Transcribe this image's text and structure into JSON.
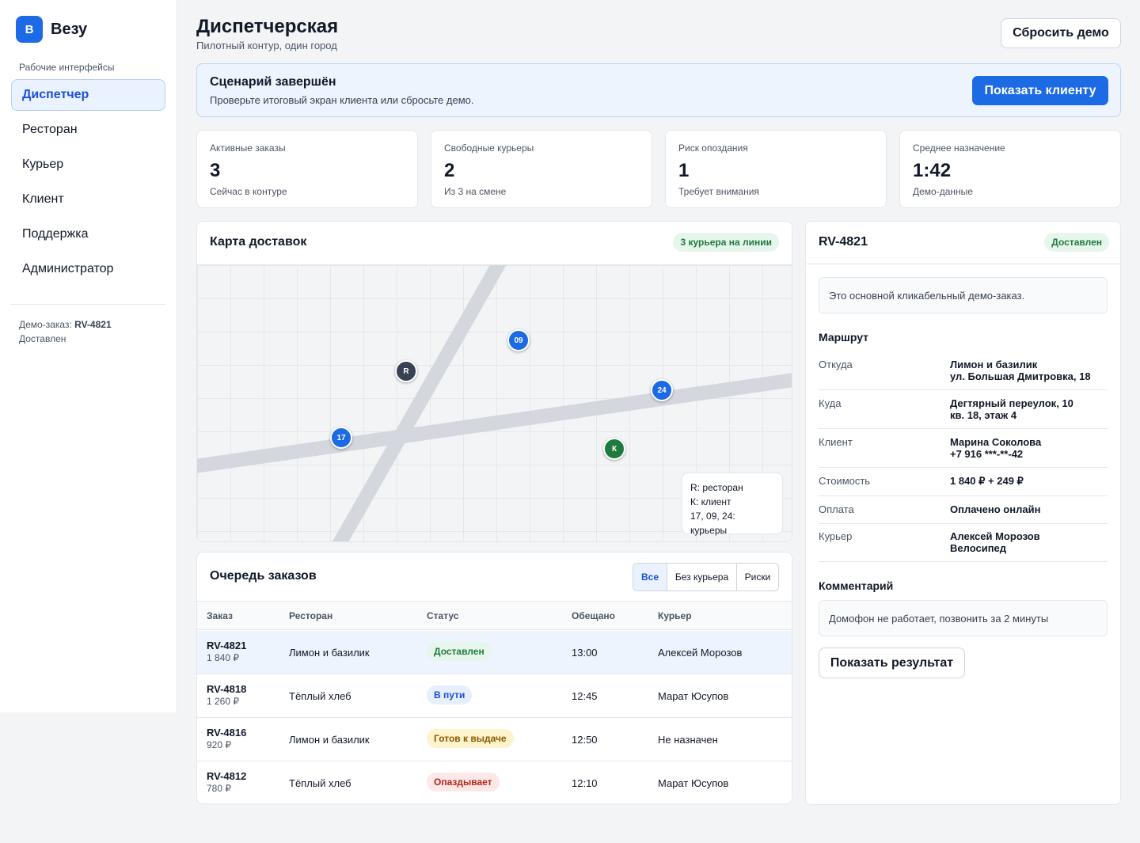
{
  "app": {
    "logo_letter": "В",
    "name": "Везу"
  },
  "sidebar": {
    "section_label": "Рабочие интерфейсы",
    "items": [
      {
        "label": "Диспетчер",
        "active": true
      },
      {
        "label": "Ресторан"
      },
      {
        "label": "Курьер"
      },
      {
        "label": "Клиент"
      },
      {
        "label": "Поддержка"
      },
      {
        "label": "Администратор"
      }
    ],
    "demo_order_prefix": "Демо-заказ:",
    "demo_order_id": "RV-4821",
    "demo_order_status": "Доставлен"
  },
  "header": {
    "title": "Диспетчерская",
    "subtitle": "Пилотный контур, один город",
    "reset_label": "Сбросить демо"
  },
  "banner": {
    "title": "Сценарий завершён",
    "text": "Проверьте итоговый экран клиента или сбросьте демо.",
    "button_label": "Показать клиенту"
  },
  "stats": [
    {
      "label": "Активные заказы",
      "value": "3",
      "note": "Сейчас в контуре"
    },
    {
      "label": "Свободные курьеры",
      "value": "2",
      "note": "Из 3 на смене"
    },
    {
      "label": "Риск опоздания",
      "value": "1",
      "note": "Требует внимания"
    },
    {
      "label": "Среднее назначение",
      "value": "1:42",
      "note": "Демо-данные"
    }
  ],
  "map": {
    "title": "Карта доставок",
    "badge": "3 курьера на линии",
    "markers": {
      "courier_09": "09",
      "restaurant": "R",
      "courier_24": "24",
      "courier_17": "17",
      "client": "К"
    },
    "legend": [
      "R: ресторан",
      "К: клиент",
      "17, 09, 24: курьеры"
    ]
  },
  "queue": {
    "title": "Очередь заказов",
    "filters": [
      "Все",
      "Без курьера",
      "Риски"
    ],
    "active_filter": "Все",
    "columns": [
      "Заказ",
      "Ресторан",
      "Статус",
      "Обещано",
      "Курьер"
    ],
    "rows": [
      {
        "id": "RV-4821",
        "price": "1 840 ₽",
        "restaurant": "Лимон и базилик",
        "status": "Доставлен",
        "promised": "13:00",
        "courier": "Алексей Морозов"
      },
      {
        "id": "RV-4818",
        "price": "1 260 ₽",
        "restaurant": "Тёплый хлеб",
        "status": "В пути",
        "promised": "12:45",
        "courier": "Марат Юсупов"
      },
      {
        "id": "RV-4816",
        "price": "920 ₽",
        "restaurant": "Лимон и базилик",
        "status": "Готов к выдаче",
        "promised": "12:50",
        "courier": "Не назначен"
      },
      {
        "id": "RV-4812",
        "price": "780 ₽",
        "restaurant": "Тёплый хлеб",
        "status": "Опаздывает",
        "promised": "12:10",
        "courier": "Марат Юсупов"
      }
    ]
  },
  "detail": {
    "order_id": "RV-4821",
    "status": "Доставлен",
    "note": "Это основной кликабельный демо-заказ.",
    "route_title": "Маршрут",
    "fields": [
      {
        "key": "Откуда",
        "line1": "Лимон и базилик",
        "line2": "ул. Большая Дмитровка, 18"
      },
      {
        "key": "Куда",
        "line1": "Дегтярный переулок, 10",
        "line2": "кв. 18, этаж 4"
      },
      {
        "key": "Клиент",
        "line1": "Марина Соколова",
        "line2": "+7 916 ***-**-42"
      },
      {
        "key": "Стоимость",
        "line1": "1 840 ₽ + 249 ₽"
      },
      {
        "key": "Оплата",
        "line1": "Оплачено онлайн"
      },
      {
        "key": "Курьер",
        "line1": "Алексей Морозов",
        "line2": "Велосипед"
      }
    ],
    "comment_title": "Комментарий",
    "comment": "Домофон не работает, позвонить за 2 минуты",
    "result_button": "Показать результат"
  },
  "colors": {
    "accent": "#1d6ae5",
    "status_delivered": "#1f7a3d",
    "status_in_transit": "#1d4ed8",
    "status_ready": "#8a5a00",
    "status_late": "#b42318"
  }
}
